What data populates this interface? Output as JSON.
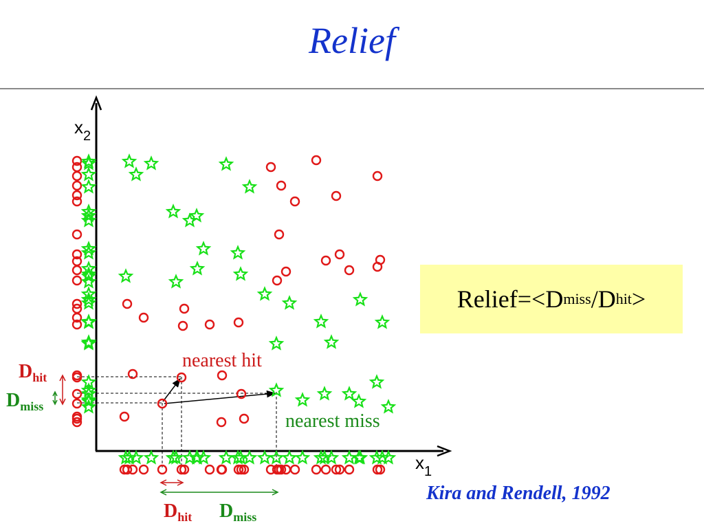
{
  "title": "Relief",
  "axes": {
    "x_label": "x",
    "x_subscript": "1",
    "y_label": "x",
    "y_subscript": "2"
  },
  "formula": {
    "lead": "Relief=<D",
    "miss_sub": "miss",
    "slash": "/D",
    "hit_sub": "hit",
    "close": ">"
  },
  "annotations": {
    "nearest_hit": "nearest hit",
    "nearest_miss": "nearest miss"
  },
  "distance_labels": {
    "D": "D",
    "hit": "hit",
    "miss": "miss"
  },
  "citation": "Kira and Rendell, 1992",
  "colors": {
    "title": "#1433cc",
    "class_circle": "#e01818",
    "class_star": "#18e018",
    "formula_box": "#ffffa8",
    "hit": "#cc1a1a",
    "miss": "#1a8a1a"
  },
  "marker_shapes": {
    "class_a": "circle",
    "class_b": "star"
  }
}
